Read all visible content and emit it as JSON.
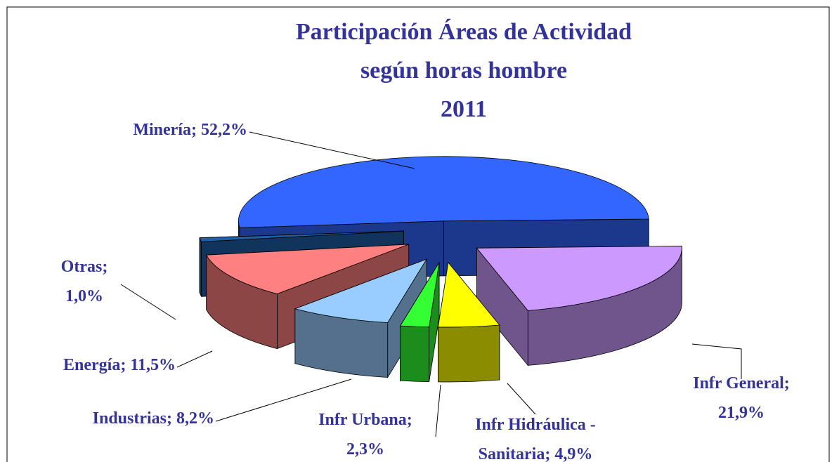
{
  "chart_data": {
    "type": "pie3d",
    "title": [
      "Participación  Áreas de Actividad",
      "según horas hombre",
      "2011"
    ],
    "values": [
      52.2,
      21.9,
      4.9,
      2.3,
      8.2,
      11.5,
      1.0
    ],
    "value_labels": [
      [
        "Minería; 52,2%"
      ],
      [
        "Infr General;",
        "21,9%"
      ],
      [
        "Infr Hidráulica -",
        "Sanitaria; 4,9%"
      ],
      [
        "Infr Urbana;",
        "2,3%"
      ],
      [
        "Industrias; 8,2%"
      ],
      [
        "Energía; 11,5%"
      ],
      [
        "Otras;",
        "1,0%"
      ]
    ],
    "colors": [
      "#3366ff",
      "#cc99ff",
      "#ffff00",
      "#33ff33",
      "#99ccff",
      "#ff8080",
      "#1f5fa8"
    ]
  }
}
